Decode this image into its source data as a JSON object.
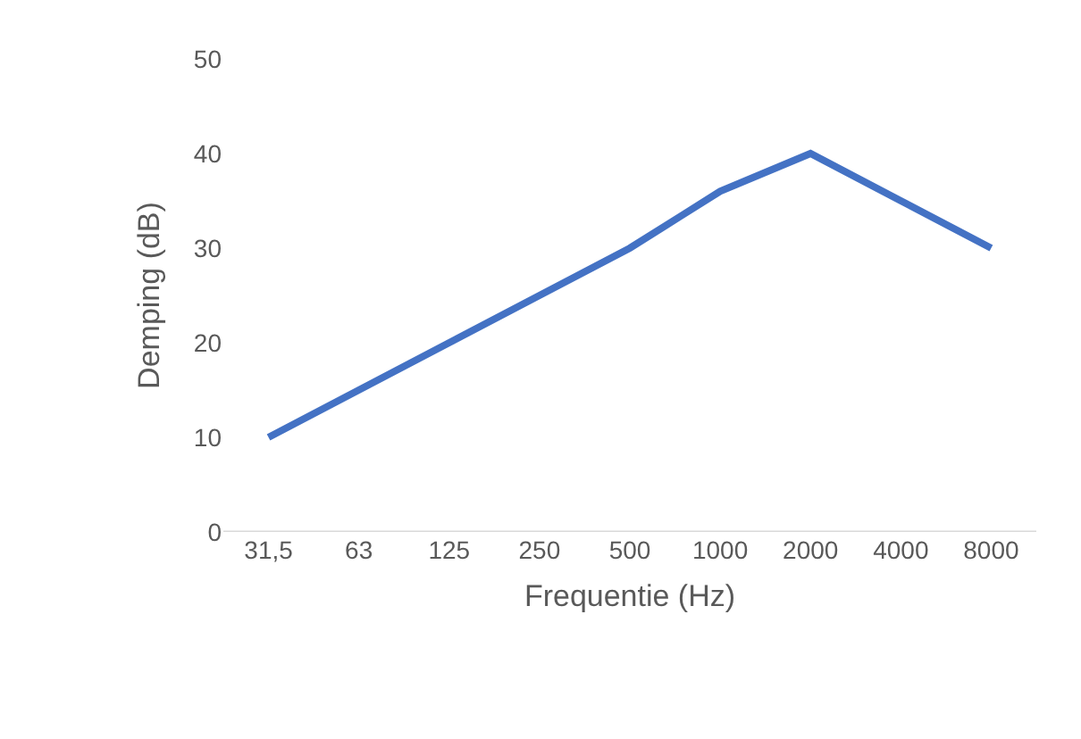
{
  "chart_data": {
    "type": "line",
    "xlabel": "Frequentie (Hz)",
    "ylabel": "Demping (dB)",
    "categories": [
      "31,5",
      "63",
      "125",
      "250",
      "500",
      "1000",
      "2000",
      "4000",
      "8000"
    ],
    "series": [
      {
        "color": "#4472c4",
        "values": [
          10,
          15,
          20,
          25,
          30,
          36,
          40,
          35,
          30
        ]
      }
    ],
    "ylim": [
      0,
      50
    ],
    "yticks": [
      0,
      10,
      20,
      30,
      40,
      50
    ],
    "marker": "none",
    "line_style": "solid"
  }
}
